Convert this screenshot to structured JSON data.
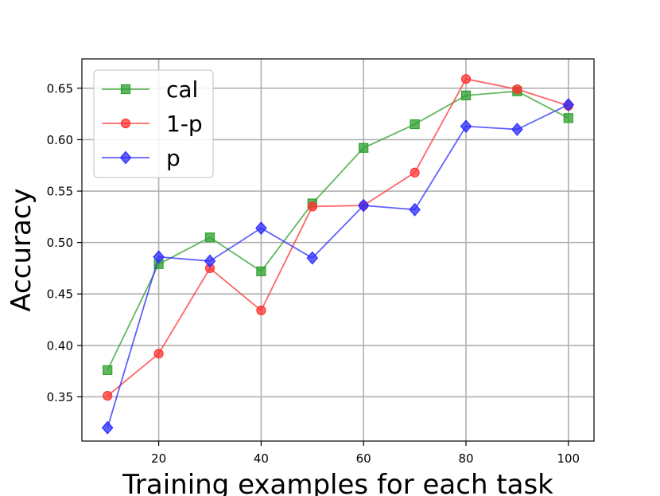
{
  "chart_data": {
    "type": "line",
    "title": "",
    "xlabel": "Training examples for each task",
    "ylabel": "Accuracy",
    "x": [
      10,
      20,
      30,
      40,
      50,
      60,
      70,
      80,
      90,
      100
    ],
    "xlim": [
      5,
      105
    ],
    "ylim": [
      0.307,
      0.6785
    ],
    "xticks": [
      20,
      40,
      60,
      80,
      100
    ],
    "yticks": [
      0.35,
      0.4,
      0.45,
      0.5,
      0.55,
      0.6,
      0.65
    ],
    "xtick_labels": [
      "20",
      "40",
      "60",
      "80",
      "100"
    ],
    "ytick_labels": [
      "0.35",
      "0.40",
      "0.45",
      "0.50",
      "0.55",
      "0.60",
      "0.65"
    ],
    "grid": true,
    "legend_position": "top-left",
    "series": [
      {
        "name": "cal",
        "color": "#2ca02c",
        "marker": "square",
        "values": [
          0.376,
          0.479,
          0.505,
          0.472,
          0.538,
          0.592,
          0.615,
          0.643,
          0.647,
          0.621
        ]
      },
      {
        "name": "1-p",
        "color": "#ff3333",
        "marker": "circle",
        "values": [
          0.351,
          0.392,
          0.475,
          0.434,
          0.535,
          0.536,
          0.568,
          0.659,
          0.649,
          0.633
        ]
      },
      {
        "name": "p",
        "color": "#2b2bff",
        "marker": "diamond",
        "values": [
          0.32,
          0.486,
          0.482,
          0.514,
          0.485,
          0.536,
          0.532,
          0.613,
          0.61,
          0.634
        ]
      }
    ]
  }
}
